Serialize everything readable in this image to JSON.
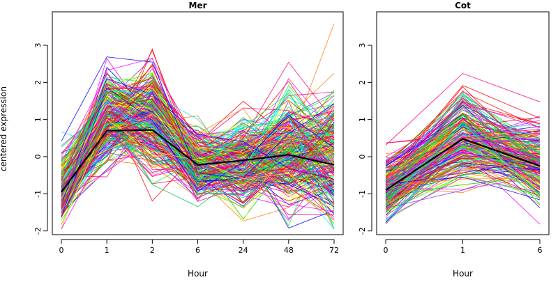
{
  "ylabel": "centered expression",
  "chart_data": [
    {
      "type": "line",
      "title": "Mer",
      "xlabel": "Hour",
      "categories": [
        "0",
        "1",
        "2",
        "6",
        "24",
        "48",
        "72"
      ],
      "ylim": [
        -2.1,
        3.9
      ],
      "yticks": [
        -2,
        -1,
        0,
        1,
        2,
        3
      ],
      "series": [
        {
          "values": [
            -0.95,
            0.7,
            0.72,
            -0.22,
            -0.1,
            0.05,
            -0.22
          ],
          "color": "#000000",
          "emphasis": true
        }
      ],
      "background_lines": {
        "count": 300,
        "center": [
          -0.9,
          1.05,
          1.0,
          -0.2,
          -0.1,
          0.2,
          0.05
        ],
        "spread": [
          0.35,
          0.6,
          0.7,
          0.35,
          0.5,
          0.75,
          0.75
        ],
        "colors": [
          "#ff0000",
          "#ff7f00",
          "#ffff00",
          "#00ff00",
          "#00e5ff",
          "#0000ff",
          "#8a2be2",
          "#ff00ff",
          "#ff0080",
          "#00c853"
        ]
      }
    },
    {
      "type": "line",
      "title": "Cot",
      "xlabel": "Hour",
      "categories": [
        "0",
        "1",
        "6"
      ],
      "ylim": [
        -2.1,
        3.9
      ],
      "yticks": [
        -2,
        -1,
        0,
        1,
        2,
        3
      ],
      "series": [
        {
          "values": [
            -0.9,
            0.48,
            -0.25
          ],
          "color": "#000000",
          "emphasis": true
        }
      ],
      "background_lines": {
        "count": 250,
        "center": [
          -0.85,
          0.55,
          -0.2
        ],
        "spread": [
          0.32,
          0.55,
          0.5
        ],
        "colors": [
          "#ff0000",
          "#ff7f00",
          "#ffff00",
          "#00ff00",
          "#00e5ff",
          "#0000ff",
          "#8a2be2",
          "#ff00ff",
          "#ff0080",
          "#00c853"
        ]
      }
    }
  ]
}
